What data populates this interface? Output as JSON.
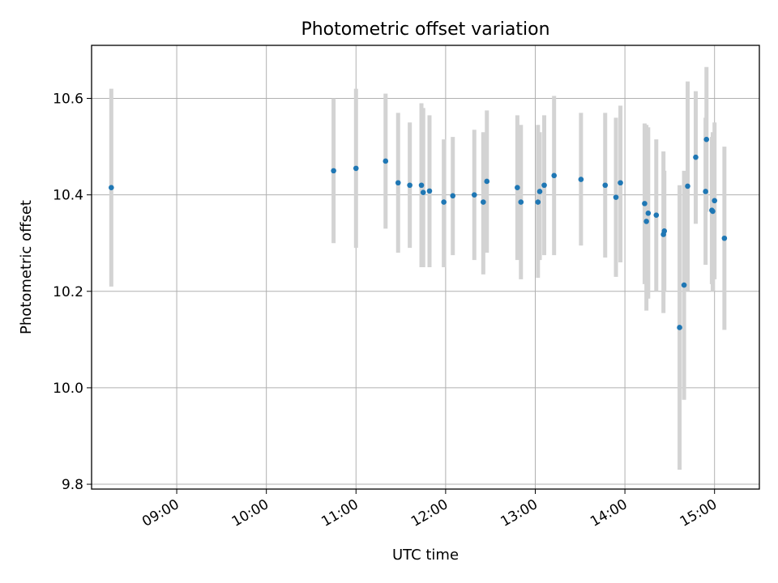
{
  "chart_data": {
    "type": "scatter",
    "title": "Photometric offset variation",
    "xlabel": "UTC time",
    "ylabel": "Photometric offset",
    "x_unit": "hours UTC",
    "xlim": [
      8.05,
      15.5
    ],
    "ylim": [
      9.79,
      10.71
    ],
    "x_ticks": [
      9,
      10,
      11,
      12,
      13,
      14,
      15
    ],
    "x_tick_labels": [
      "09:00",
      "10:00",
      "11:00",
      "12:00",
      "13:00",
      "14:00",
      "15:00"
    ],
    "y_ticks": [
      9.8,
      10.0,
      10.2,
      10.4,
      10.6
    ],
    "y_tick_labels": [
      "9.8",
      "10.0",
      "10.2",
      "10.4",
      "10.6"
    ],
    "grid": true,
    "colors": {
      "point": "#1f77b4",
      "errorbar": "#d3d3d3",
      "grid": "#b0b0b0",
      "frame": "#000000"
    },
    "points": [
      {
        "x": 8.27,
        "y": 10.415,
        "lo": 10.21,
        "hi": 10.62
      },
      {
        "x": 10.75,
        "y": 10.45,
        "lo": 10.3,
        "hi": 10.6
      },
      {
        "x": 11.0,
        "y": 10.455,
        "lo": 10.29,
        "hi": 10.62
      },
      {
        "x": 11.33,
        "y": 10.47,
        "lo": 10.33,
        "hi": 10.61
      },
      {
        "x": 11.47,
        "y": 10.425,
        "lo": 10.28,
        "hi": 10.57
      },
      {
        "x": 11.6,
        "y": 10.42,
        "lo": 10.29,
        "hi": 10.55
      },
      {
        "x": 11.73,
        "y": 10.42,
        "lo": 10.25,
        "hi": 10.59
      },
      {
        "x": 11.75,
        "y": 10.405,
        "lo": 10.25,
        "hi": 10.58
      },
      {
        "x": 11.82,
        "y": 10.408,
        "lo": 10.25,
        "hi": 10.565
      },
      {
        "x": 11.98,
        "y": 10.385,
        "lo": 10.25,
        "hi": 10.515
      },
      {
        "x": 12.08,
        "y": 10.398,
        "lo": 10.275,
        "hi": 10.52
      },
      {
        "x": 12.32,
        "y": 10.4,
        "lo": 10.265,
        "hi": 10.535
      },
      {
        "x": 12.42,
        "y": 10.385,
        "lo": 10.235,
        "hi": 10.53
      },
      {
        "x": 12.46,
        "y": 10.428,
        "lo": 10.28,
        "hi": 10.575
      },
      {
        "x": 12.8,
        "y": 10.415,
        "lo": 10.265,
        "hi": 10.565
      },
      {
        "x": 12.84,
        "y": 10.385,
        "lo": 10.225,
        "hi": 10.545
      },
      {
        "x": 13.03,
        "y": 10.385,
        "lo": 10.228,
        "hi": 10.545
      },
      {
        "x": 13.05,
        "y": 10.407,
        "lo": 10.265,
        "hi": 10.53
      },
      {
        "x": 13.1,
        "y": 10.42,
        "lo": 10.275,
        "hi": 10.565
      },
      {
        "x": 13.21,
        "y": 10.44,
        "lo": 10.275,
        "hi": 10.605
      },
      {
        "x": 13.51,
        "y": 10.432,
        "lo": 10.295,
        "hi": 10.57
      },
      {
        "x": 13.78,
        "y": 10.42,
        "lo": 10.27,
        "hi": 10.57
      },
      {
        "x": 13.9,
        "y": 10.395,
        "lo": 10.23,
        "hi": 10.56
      },
      {
        "x": 13.95,
        "y": 10.425,
        "lo": 10.26,
        "hi": 10.585
      },
      {
        "x": 14.22,
        "y": 10.382,
        "lo": 10.215,
        "hi": 10.548
      },
      {
        "x": 14.24,
        "y": 10.345,
        "lo": 10.16,
        "hi": 10.545
      },
      {
        "x": 14.26,
        "y": 10.362,
        "lo": 10.185,
        "hi": 10.54
      },
      {
        "x": 14.35,
        "y": 10.358,
        "lo": 10.2,
        "hi": 10.515
      },
      {
        "x": 14.43,
        "y": 10.318,
        "lo": 10.155,
        "hi": 10.49
      },
      {
        "x": 14.44,
        "y": 10.325,
        "lo": 10.2,
        "hi": 10.45
      },
      {
        "x": 14.61,
        "y": 10.125,
        "lo": 9.83,
        "hi": 10.42
      },
      {
        "x": 14.66,
        "y": 10.213,
        "lo": 9.975,
        "hi": 10.45
      },
      {
        "x": 14.7,
        "y": 10.418,
        "lo": 10.2,
        "hi": 10.635
      },
      {
        "x": 14.79,
        "y": 10.478,
        "lo": 10.34,
        "hi": 10.615
      },
      {
        "x": 14.9,
        "y": 10.407,
        "lo": 10.255,
        "hi": 10.56
      },
      {
        "x": 14.91,
        "y": 10.515,
        "lo": 10.365,
        "hi": 10.665
      },
      {
        "x": 14.97,
        "y": 10.368,
        "lo": 10.215,
        "hi": 10.52
      },
      {
        "x": 14.98,
        "y": 10.366,
        "lo": 10.2,
        "hi": 10.53
      },
      {
        "x": 15.0,
        "y": 10.388,
        "lo": 10.225,
        "hi": 10.55
      },
      {
        "x": 15.11,
        "y": 10.31,
        "lo": 10.12,
        "hi": 10.5
      }
    ]
  }
}
